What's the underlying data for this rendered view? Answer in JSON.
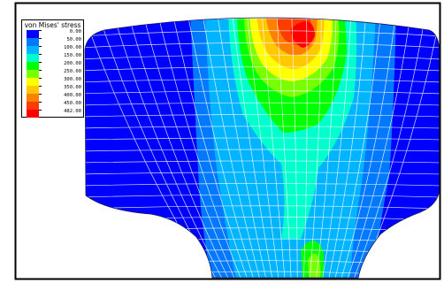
{
  "legend": {
    "title": "von Mises' stress",
    "entries": [
      {
        "label": "0.00",
        "color": "#0000ff"
      },
      {
        "label": "50.00",
        "color": "#0078ff"
      },
      {
        "label": "100.00",
        "color": "#00b4ff"
      },
      {
        "label": "150.00",
        "color": "#00ffcc"
      },
      {
        "label": "200.00",
        "color": "#00ff00"
      },
      {
        "label": "250.00",
        "color": "#78ff00"
      },
      {
        "label": "300.00",
        "color": "#ffff00"
      },
      {
        "label": "350.00",
        "color": "#ffc800"
      },
      {
        "label": "400.00",
        "color": "#ff8000"
      },
      {
        "label": "450.00",
        "color": "#ff3c00"
      },
      {
        "label": "482.00",
        "color": "#ff0000"
      }
    ]
  },
  "colors": {
    "frame": "#000000",
    "mesh": "#ffffff"
  }
}
